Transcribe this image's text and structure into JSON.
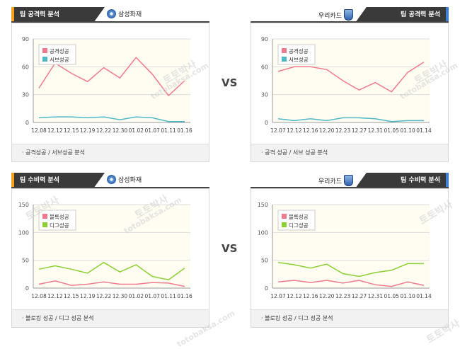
{
  "vs_label": "VS",
  "watermark_main": "토토박사",
  "watermark_site": "totobaksa.com",
  "colors": {
    "pink": "#f07a8c",
    "teal": "#4fb8c7",
    "green": "#8ccf32"
  },
  "panels": [
    {
      "header_title": "팀 공격력 분석",
      "team_name": "삼성화재",
      "team_emblem": "samsung-emblem-icon",
      "header_side": "left",
      "footer": "· 공격성공 / 서브성공 분석",
      "chart_data": {
        "type": "line",
        "categories": [
          "12.08",
          "12.12",
          "12.15",
          "12.19",
          "12.22",
          "12.30",
          "01.02",
          "01.07",
          "01.11",
          "01.16"
        ],
        "series": [
          {
            "name": "공격성공",
            "color": "#f07a8c",
            "values": [
              37,
              64,
              53,
              44,
              59,
              48,
              70,
              52,
              29,
              45
            ]
          },
          {
            "name": "서브성공",
            "color": "#4fb8c7",
            "values": [
              5,
              6,
              6,
              5,
              6,
              3,
              6,
              5,
              1,
              1
            ]
          }
        ],
        "yticks": [
          0,
          30,
          60,
          90
        ],
        "ylim": [
          0,
          90
        ],
        "grid": true,
        "legend_position": "top-left"
      }
    },
    {
      "header_title": "팀 공격력 분석",
      "team_name": "우리카드",
      "team_emblem": "woori-shield-icon",
      "header_side": "right",
      "footer": "· 공격 성공 / 서브 성공 분석",
      "chart_data": {
        "type": "line",
        "categories": [
          "12.07",
          "12.12",
          "12.16",
          "12.20",
          "12.23",
          "12.27",
          "12.31",
          "01.05",
          "01.10",
          "01.14"
        ],
        "series": [
          {
            "name": "공격성공",
            "color": "#f07a8c",
            "values": [
              55,
              60,
              60,
              57,
              45,
              35,
              43,
              33,
              54,
              65
            ]
          },
          {
            "name": "서브성공",
            "color": "#4fb8c7",
            "values": [
              4,
              2,
              4,
              2,
              5,
              5,
              4,
              1,
              2,
              2
            ]
          }
        ],
        "yticks": [
          0,
          30,
          60,
          90
        ],
        "ylim": [
          0,
          90
        ],
        "grid": true,
        "legend_position": "top-left"
      }
    },
    {
      "header_title": "팀 수비력 분석",
      "team_name": "삼성화재",
      "team_emblem": "samsung-emblem-icon",
      "header_side": "left",
      "footer": "· 블로킹 성공 / 디그 성공 분석",
      "chart_data": {
        "type": "line",
        "categories": [
          "12.08",
          "12.12",
          "12.15",
          "12.19",
          "12.22",
          "12.30",
          "01.02",
          "01.07",
          "01.11",
          "01.16"
        ],
        "series": [
          {
            "name": "블록성공",
            "color": "#f07a8c",
            "values": [
              7,
              13,
              5,
              7,
              11,
              7,
              7,
              10,
              9,
              3
            ]
          },
          {
            "name": "디그성공",
            "color": "#8ccf32",
            "values": [
              34,
              40,
              34,
              27,
              46,
              29,
              42,
              21,
              15,
              36
            ]
          }
        ],
        "yticks": [
          0,
          50,
          100,
          150
        ],
        "ylim": [
          0,
          150
        ],
        "grid": true,
        "legend_position": "top-left"
      }
    },
    {
      "header_title": "팀 수비력 분석",
      "team_name": "우리카드",
      "team_emblem": "woori-shield-icon",
      "header_side": "right",
      "footer": "· 블로킹 성공 / 디그 성공 분석",
      "chart_data": {
        "type": "line",
        "categories": [
          "12.07",
          "12.12",
          "12.16",
          "12.20",
          "12.23",
          "12.27",
          "12.31",
          "01.05",
          "01.10",
          "01.14"
        ],
        "series": [
          {
            "name": "블록성공",
            "color": "#f07a8c",
            "values": [
              11,
              14,
              10,
              14,
              9,
              14,
              6,
              3,
              11,
              5
            ]
          },
          {
            "name": "디그성공",
            "color": "#8ccf32",
            "values": [
              46,
              42,
              36,
              43,
              26,
              21,
              28,
              32,
              44,
              44
            ]
          }
        ],
        "yticks": [
          0,
          50,
          100,
          150
        ],
        "ylim": [
          0,
          150
        ],
        "grid": true,
        "legend_position": "top-left"
      }
    }
  ]
}
